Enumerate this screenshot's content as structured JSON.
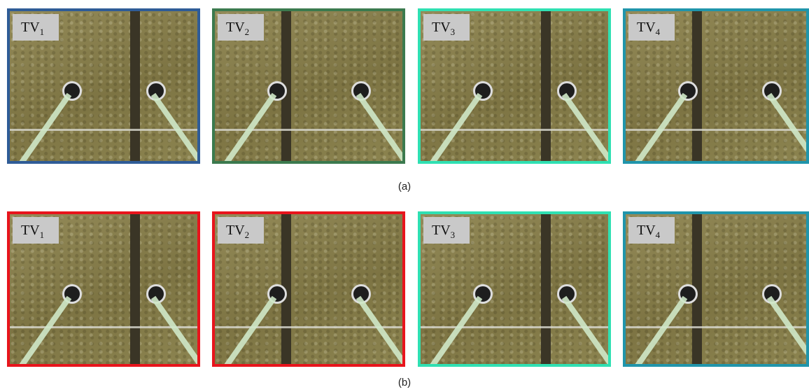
{
  "rows": [
    {
      "caption": "(a)",
      "panels": [
        {
          "label": {
            "base": "TV",
            "sub": "1"
          },
          "border_color": "#2f5c97"
        },
        {
          "label": {
            "base": "TV",
            "sub": "2"
          },
          "border_color": "#3b7a4e"
        },
        {
          "label": {
            "base": "TV",
            "sub": "3"
          },
          "border_color": "#2fe0b2"
        },
        {
          "label": {
            "base": "TV",
            "sub": "4"
          },
          "border_color": "#2095ab"
        }
      ]
    },
    {
      "caption": "(b)",
      "panels": [
        {
          "label": {
            "base": "TV",
            "sub": "1"
          },
          "border_color": "#e8141c"
        },
        {
          "label": {
            "base": "TV",
            "sub": "2"
          },
          "border_color": "#e8141c"
        },
        {
          "label": {
            "base": "TV",
            "sub": "3"
          },
          "border_color": "#2fe0b2"
        },
        {
          "label": {
            "base": "TV",
            "sub": "4"
          },
          "border_color": "#2095ab"
        }
      ]
    }
  ]
}
